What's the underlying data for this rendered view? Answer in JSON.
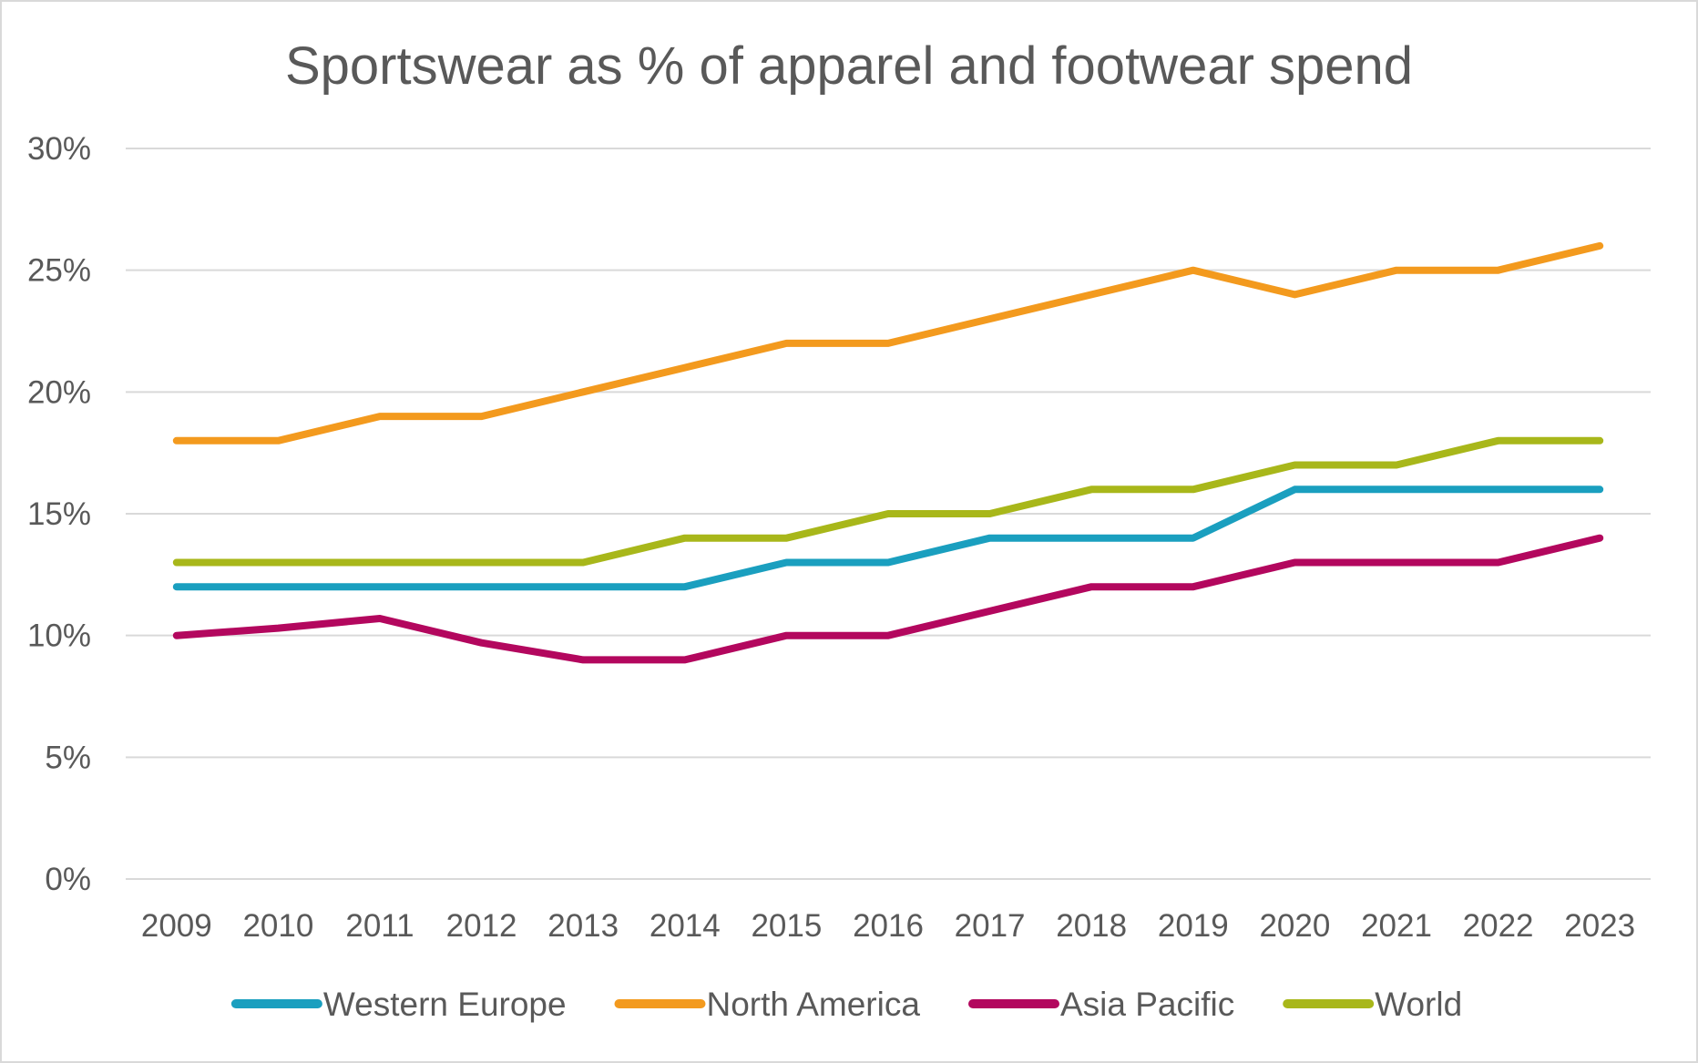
{
  "chart_data": {
    "type": "line",
    "title": "Sportswear as % of apparel and footwear spend",
    "xlabel": "",
    "ylabel": "",
    "categories": [
      "2009",
      "2010",
      "2011",
      "2012",
      "2013",
      "2014",
      "2015",
      "2016",
      "2017",
      "2018",
      "2019",
      "2020",
      "2021",
      "2022",
      "2023"
    ],
    "ylim": [
      0,
      30
    ],
    "yticks": [
      0,
      5,
      10,
      15,
      20,
      25,
      30
    ],
    "ytick_labels": [
      "0%",
      "5%",
      "10%",
      "15%",
      "20%",
      "25%",
      "30%"
    ],
    "grid": true,
    "legend_position": "bottom",
    "series": [
      {
        "name": "Western Europe",
        "color": "#1a9fbf",
        "values": [
          12,
          12,
          12,
          12,
          12,
          12,
          13,
          13,
          14,
          14,
          14,
          16,
          16,
          16,
          16
        ]
      },
      {
        "name": "North America",
        "color": "#f39a1e",
        "values": [
          18,
          18,
          19,
          19,
          20,
          21,
          22,
          22,
          23,
          24,
          25,
          24,
          25,
          25,
          26
        ]
      },
      {
        "name": "Asia Pacific",
        "color": "#b3075e",
        "values": [
          10,
          10.3,
          10.7,
          9.7,
          9,
          9,
          10,
          10,
          11,
          12,
          12,
          13,
          13,
          13,
          14
        ]
      },
      {
        "name": "World",
        "color": "#a8b71a",
        "values": [
          13,
          13,
          13,
          13,
          13,
          14,
          14,
          15,
          15,
          16,
          16,
          17,
          17,
          18,
          18
        ]
      }
    ]
  }
}
